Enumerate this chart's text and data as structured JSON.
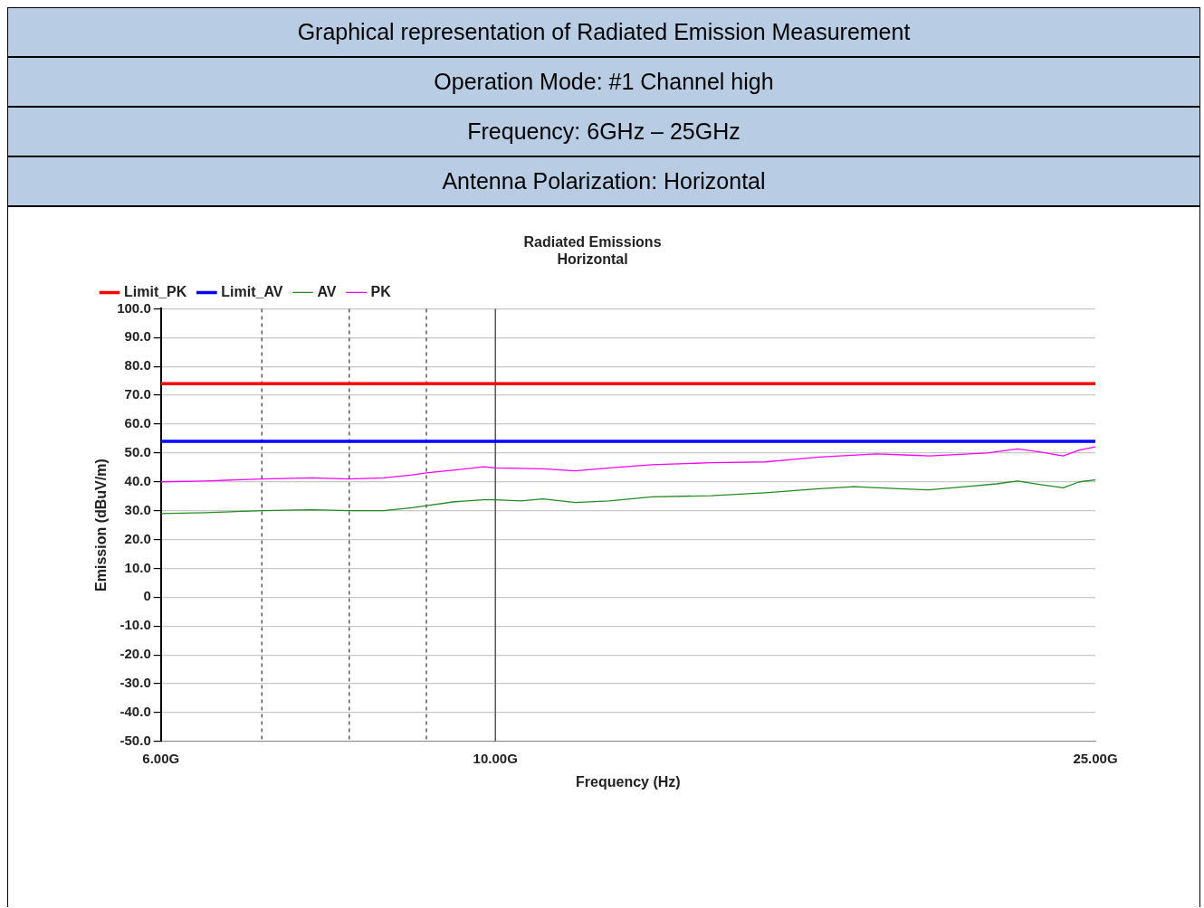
{
  "chart_data": {
    "type": "line",
    "title": "Graphical representation of Radiated Emission Measurement",
    "subtitle": "Operation Mode: #1  Channel high",
    "annotations": [
      "Frequency: 6GHz – 25GHz",
      "Antenna Polarization: Horizontal",
      "Radiated Emissions",
      "Horizontal"
    ],
    "xlabel": "Frequency (Hz)",
    "ylabel": "Emission (dBuV/m)",
    "log": "x",
    "grid": true,
    "legend": "top left",
    "marker": "none",
    "line_style": "solid",
    "xlim": [
      6,
      25
    ],
    "xticks": [
      {
        "value": 6,
        "label": "6.00G"
      },
      {
        "value": 7,
        "label": null
      },
      {
        "value": 8,
        "label": null
      },
      {
        "value": 9,
        "label": null
      },
      {
        "value": 10,
        "label": "10.00G"
      },
      {
        "value": 25,
        "label": "25.00G"
      }
    ],
    "ylim": [
      -50,
      100
    ],
    "yticks": [
      {
        "value": -50,
        "label": "-50.0"
      },
      {
        "value": -40,
        "label": "-40.0"
      },
      {
        "value": -30,
        "label": "-30.0"
      },
      {
        "value": -20,
        "label": "-20.0"
      },
      {
        "value": -10,
        "label": "-10.0"
      },
      0,
      {
        "value": 10,
        "label": "10.0"
      },
      {
        "value": 20,
        "label": "20.0"
      },
      {
        "value": 30,
        "label": "30.0"
      },
      {
        "value": 40,
        "label": "40.0"
      },
      {
        "value": 50,
        "label": "50.0"
      },
      {
        "value": 60,
        "label": "60.0"
      },
      {
        "value": 70,
        "label": "70.0"
      },
      {
        "value": 80,
        "label": "80.0"
      },
      {
        "value": 90,
        "label": "90.0"
      },
      {
        "value": 100,
        "label": "100.0"
      }
    ],
    "ref_lines": [
      {
        "axis": "x",
        "value": 10,
        "color": "#555555",
        "line_style": "solid"
      }
    ],
    "series": [
      {
        "name": "Limit_PK",
        "color": "#ff0000",
        "x": [
          6,
          25
        ],
        "values": [
          74,
          74
        ]
      },
      {
        "name": "Limit_AV",
        "color": "#0000ff",
        "x": [
          6,
          25
        ],
        "values": [
          54,
          54
        ]
      },
      {
        "name": "AV",
        "color": "#228b22",
        "x": [
          6,
          6.42,
          7,
          7.56,
          8,
          8.43,
          8.81,
          9,
          9.4,
          9.82,
          10,
          10.4,
          10.75,
          11.3,
          11.9,
          12.7,
          13.9,
          15.1,
          16.4,
          17.3,
          18.5,
          19.4,
          20.5,
          21.5,
          22.2,
          23,
          23.8,
          24.4,
          25
        ],
        "values": [
          29.0,
          29.3,
          30.0,
          30.3,
          30.0,
          30.0,
          31.0,
          31.7,
          33.1,
          33.8,
          33.8,
          33.4,
          34.1,
          32.8,
          33.4,
          34.8,
          35.2,
          36.2,
          37.6,
          38.3,
          37.6,
          37.2,
          38.3,
          39.3,
          40.3,
          39.0,
          37.9,
          40.0,
          40.7
        ]
      },
      {
        "name": "PK",
        "color": "#ff00ff",
        "x": [
          6,
          6.42,
          7,
          7.56,
          8,
          8.43,
          8.81,
          9,
          9.4,
          9.82,
          10,
          10.75,
          11.3,
          11.9,
          12.7,
          13.9,
          15.1,
          16.4,
          17.9,
          19.4,
          21.2,
          22.2,
          23,
          23.8,
          24.4,
          25
        ],
        "values": [
          40.0,
          40.3,
          41.0,
          41.4,
          41.0,
          41.4,
          42.4,
          43.1,
          44.1,
          45.2,
          44.8,
          44.5,
          43.8,
          44.8,
          45.9,
          46.6,
          46.9,
          48.6,
          49.7,
          49.0,
          50.0,
          51.4,
          50.3,
          49.0,
          51.0,
          52.1
        ]
      }
    ]
  }
}
